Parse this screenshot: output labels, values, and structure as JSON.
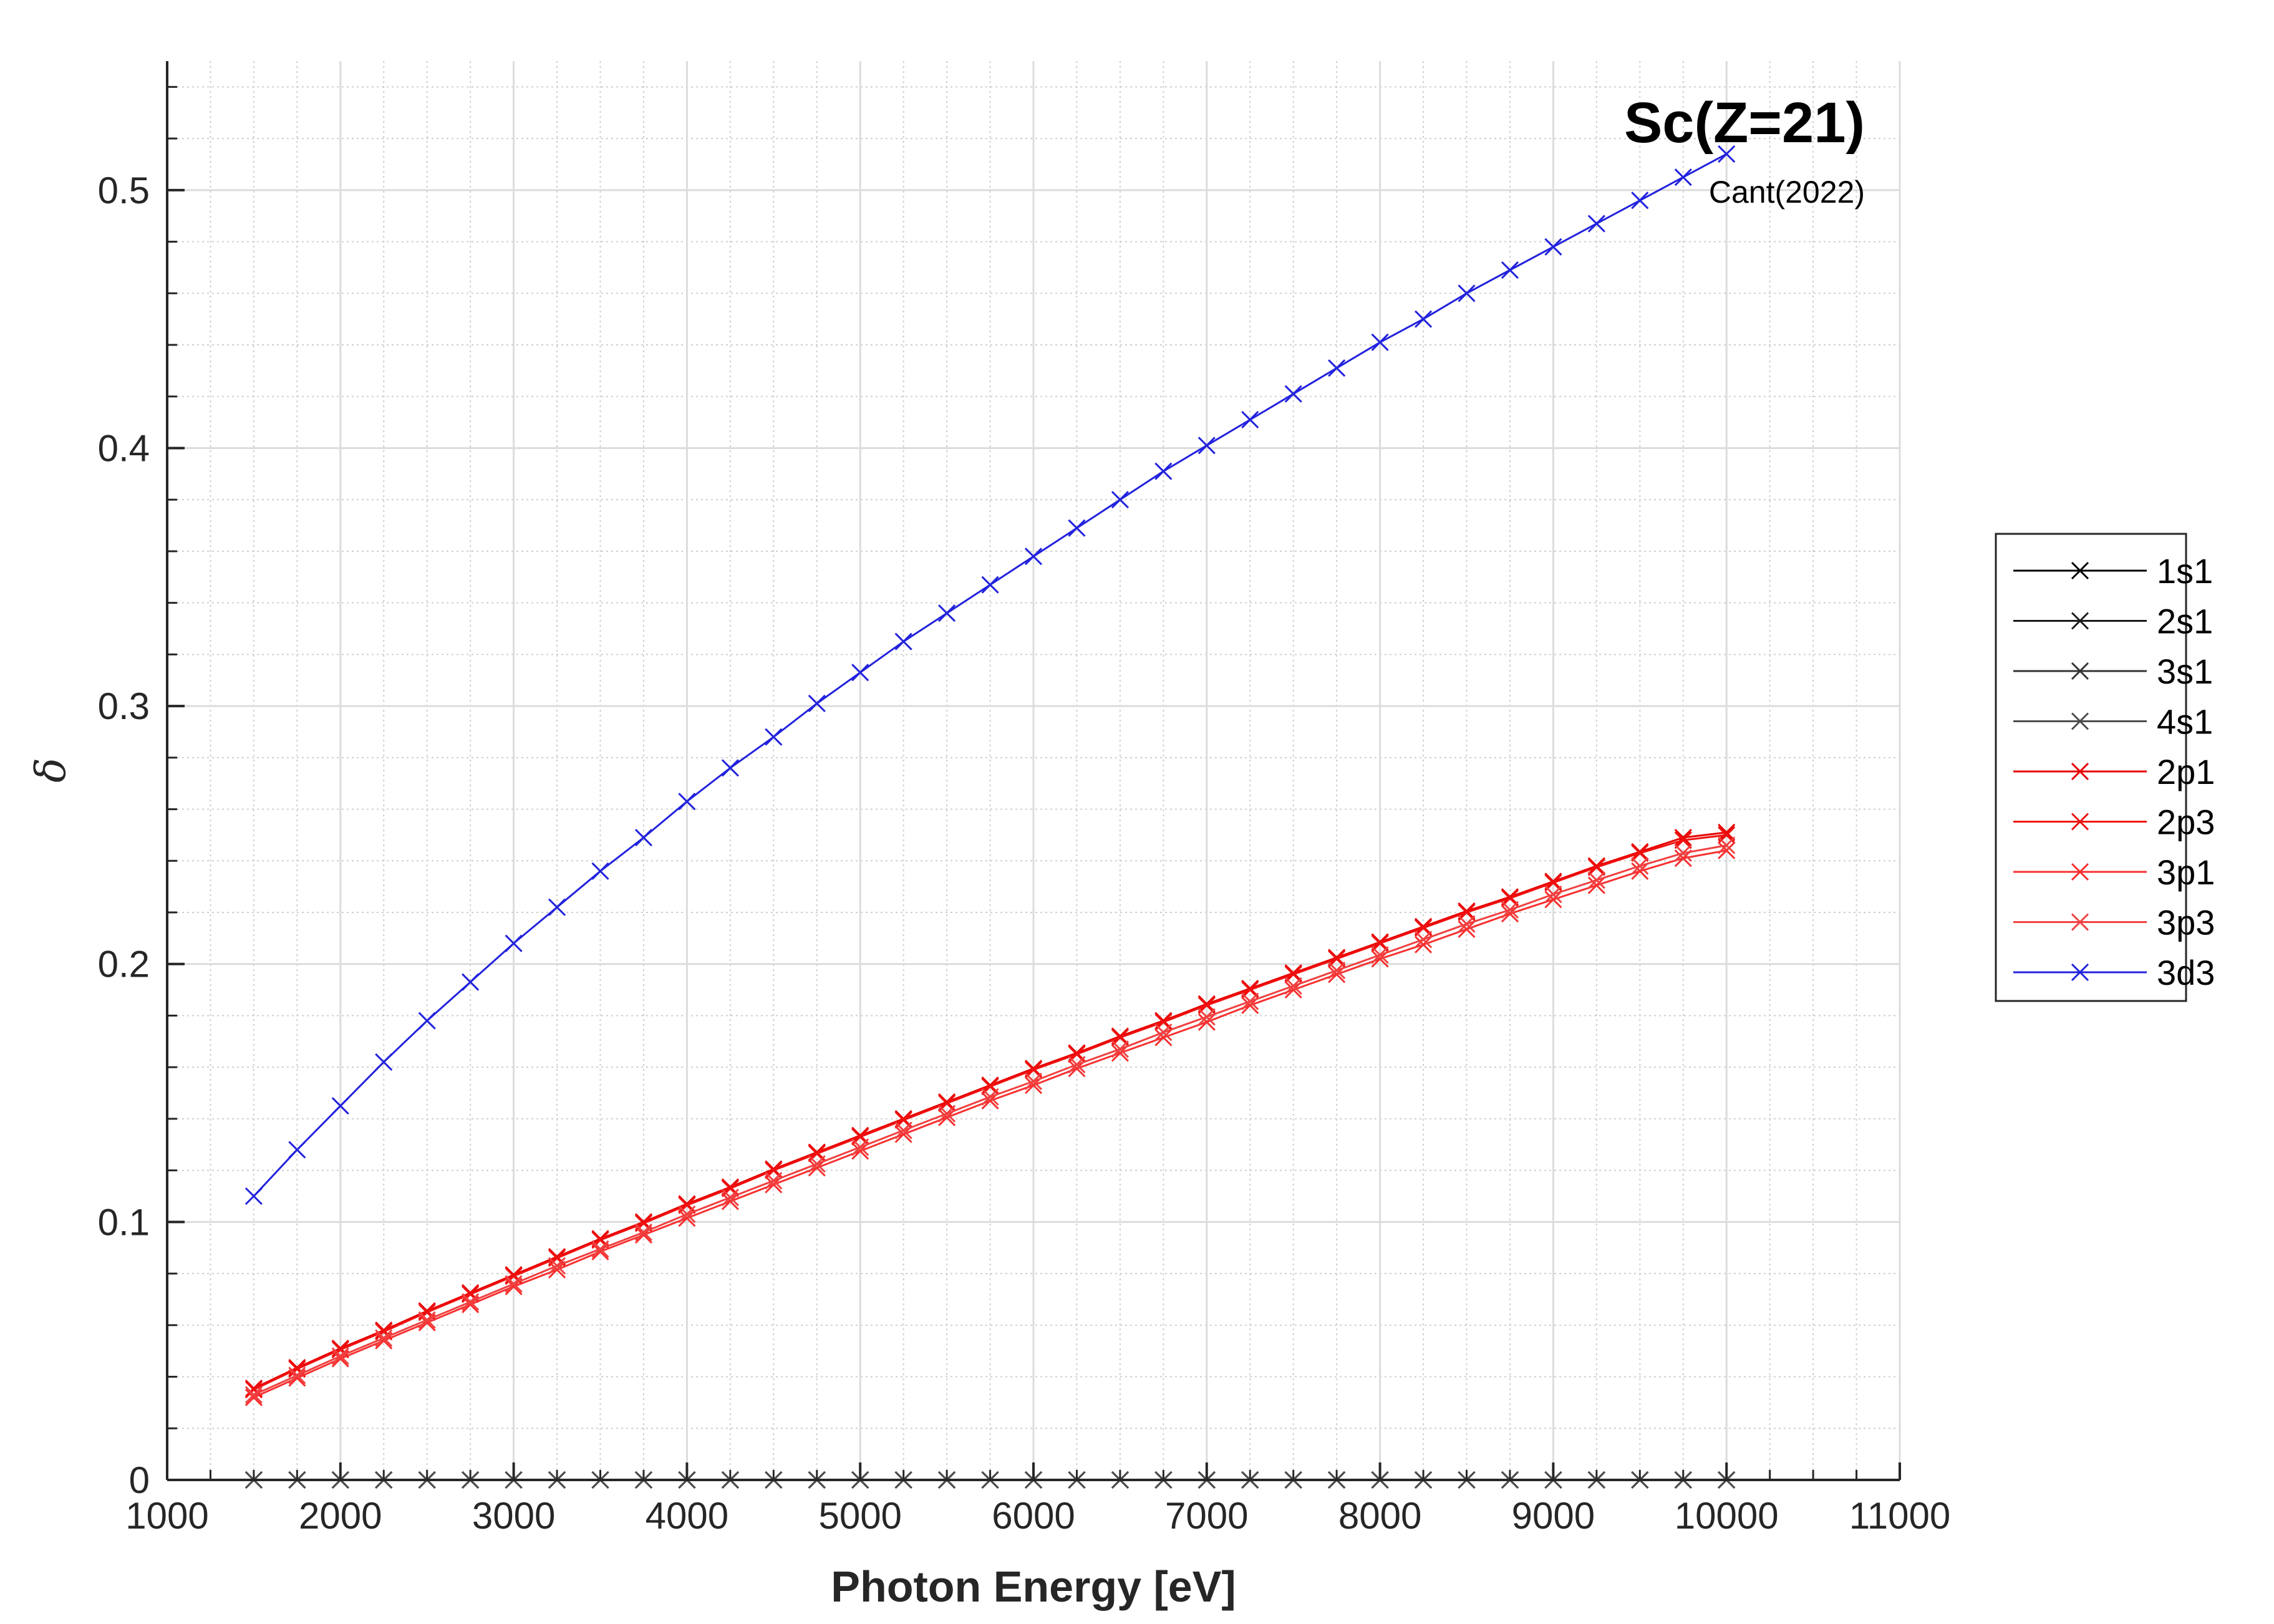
{
  "chart_data": {
    "type": "line",
    "title": "Sc(Z=21)",
    "subtitle": "Cant(2022)",
    "xlabel": "Photon Energy [eV]",
    "ylabel": "δ",
    "xlim": [
      1000,
      11000
    ],
    "ylim": [
      0,
      0.55
    ],
    "xticks": [
      1000,
      2000,
      3000,
      4000,
      5000,
      6000,
      7000,
      8000,
      9000,
      10000,
      11000
    ],
    "yticks": [
      0,
      0.1,
      0.2,
      0.3,
      0.4,
      0.5
    ],
    "xtick_labels": [
      "1000",
      "2000",
      "3000",
      "4000",
      "5000",
      "6000",
      "7000",
      "8000",
      "9000",
      "10000",
      "11000"
    ],
    "ytick_labels": [
      "0",
      "0.1",
      "0.2",
      "0.3",
      "0.4",
      "0.5"
    ],
    "grid": true,
    "minor_grid": true,
    "legend_position": "outside-right",
    "x": [
      1500,
      1750,
      2000,
      2250,
      2500,
      2750,
      3000,
      3250,
      3500,
      3750,
      4000,
      4250,
      4500,
      4750,
      5000,
      5250,
      5500,
      5750,
      6000,
      6250,
      6500,
      6750,
      7000,
      7250,
      7500,
      7750,
      8000,
      8250,
      8500,
      8750,
      9000,
      9250,
      9500,
      9750,
      10000
    ],
    "series": [
      {
        "name": "1s1",
        "color": "#000000",
        "values": [
          0,
          0,
          0,
          0,
          0,
          0,
          0,
          0,
          0,
          0,
          0,
          0,
          0,
          0,
          0,
          0,
          0,
          0,
          0,
          0,
          0,
          0,
          0,
          0,
          0,
          0,
          0,
          0,
          0,
          0,
          0,
          0,
          0,
          0,
          0
        ]
      },
      {
        "name": "2s1",
        "color": "#1a1a1a",
        "values": [
          0,
          0,
          0,
          0,
          0,
          0,
          0,
          0,
          0,
          0,
          0,
          0,
          0,
          0,
          0,
          0,
          0,
          0,
          0,
          0,
          0,
          0,
          0,
          0,
          0,
          0,
          0,
          0,
          0,
          0,
          0,
          0,
          0,
          0,
          0
        ]
      },
      {
        "name": "3s1",
        "color": "#333333",
        "values": [
          0,
          0,
          0,
          0,
          0,
          0,
          0,
          0,
          0,
          0,
          0,
          0,
          0,
          0,
          0,
          0,
          0,
          0,
          0,
          0,
          0,
          0,
          0,
          0,
          0,
          0,
          0,
          0,
          0,
          0,
          0,
          0,
          0,
          0,
          0
        ]
      },
      {
        "name": "4s1",
        "color": "#4d4d4d",
        "values": [
          0,
          0,
          0,
          0,
          0,
          0,
          0,
          0,
          0,
          0,
          0,
          0,
          0,
          0,
          0,
          0,
          0,
          0,
          0,
          0,
          0,
          0,
          0,
          0,
          0,
          0,
          0,
          0,
          0,
          0,
          0,
          0,
          0,
          0,
          0
        ]
      },
      {
        "name": "2p1",
        "color": "#e60000",
        "values": [
          0.0355,
          0.0435,
          0.051,
          0.058,
          0.0655,
          0.0725,
          0.0795,
          0.0865,
          0.0935,
          0.1,
          0.107,
          0.1135,
          0.1205,
          0.127,
          0.1335,
          0.14,
          0.1465,
          0.153,
          0.1595,
          0.1655,
          0.172,
          0.178,
          0.1845,
          0.1905,
          0.1965,
          0.2025,
          0.2085,
          0.2145,
          0.2205,
          0.226,
          0.232,
          0.238,
          0.2435,
          0.249,
          0.251
        ]
      },
      {
        "name": "2p3",
        "color": "#f01010",
        "values": [
          0.035,
          0.043,
          0.0505,
          0.0575,
          0.065,
          0.072,
          0.079,
          0.086,
          0.093,
          0.0995,
          0.1065,
          0.113,
          0.12,
          0.1265,
          0.133,
          0.1395,
          0.146,
          0.1525,
          0.159,
          0.165,
          0.1715,
          0.1775,
          0.184,
          0.19,
          0.196,
          0.202,
          0.208,
          0.214,
          0.22,
          0.2255,
          0.2315,
          0.2375,
          0.243,
          0.248,
          0.25
        ]
      },
      {
        "name": "3p1",
        "color": "#f83030",
        "values": [
          0.032,
          0.0395,
          0.047,
          0.054,
          0.061,
          0.068,
          0.075,
          0.0815,
          0.0885,
          0.095,
          0.1015,
          0.108,
          0.1145,
          0.121,
          0.1275,
          0.134,
          0.1405,
          0.147,
          0.153,
          0.1595,
          0.1655,
          0.1715,
          0.1775,
          0.184,
          0.19,
          0.196,
          0.202,
          0.2075,
          0.2135,
          0.2195,
          0.225,
          0.2305,
          0.236,
          0.241,
          0.244
        ]
      },
      {
        "name": "3p3",
        "color": "#f04040",
        "values": [
          0.033,
          0.0405,
          0.048,
          0.055,
          0.062,
          0.069,
          0.076,
          0.083,
          0.0895,
          0.096,
          0.103,
          0.1095,
          0.116,
          0.1225,
          0.129,
          0.1355,
          0.142,
          0.1485,
          0.1545,
          0.161,
          0.167,
          0.1735,
          0.1795,
          0.1855,
          0.1915,
          0.1975,
          0.2035,
          0.2095,
          0.2155,
          0.221,
          0.227,
          0.2325,
          0.238,
          0.243,
          0.246
        ]
      },
      {
        "name": "3d3",
        "color": "#2222dd",
        "values": [
          0.11,
          0.128,
          0.145,
          0.162,
          0.178,
          0.193,
          0.208,
          0.222,
          0.236,
          0.249,
          0.263,
          0.276,
          0.288,
          0.301,
          0.313,
          0.325,
          0.336,
          0.347,
          0.358,
          0.369,
          0.38,
          0.391,
          0.401,
          0.411,
          0.421,
          0.431,
          0.441,
          0.45,
          0.46,
          0.469,
          0.478,
          0.487,
          0.496,
          0.505,
          0.514
        ]
      }
    ]
  }
}
